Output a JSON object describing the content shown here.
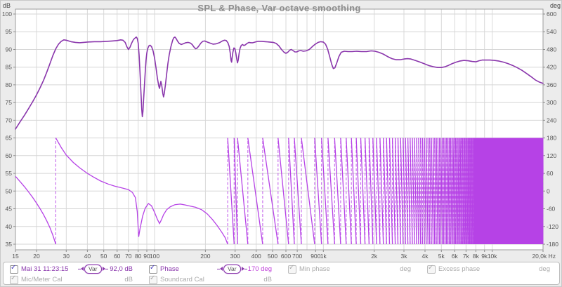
{
  "chart_data": {
    "type": "line",
    "title": "SPL & Phase, Var octave smoothing",
    "x_axis": {
      "unit": "Hz",
      "scale": "log",
      "min": 15,
      "max": 20000,
      "ticks": [
        {
          "f": 15,
          "label": "15"
        },
        {
          "f": 20,
          "label": "20"
        },
        {
          "f": 30,
          "label": "30"
        },
        {
          "f": 40,
          "label": "40"
        },
        {
          "f": 50,
          "label": "50"
        },
        {
          "f": 60,
          "label": "60"
        },
        {
          "f": 70,
          "label": "70"
        },
        {
          "f": 80,
          "label": "80"
        },
        {
          "f": 90,
          "label": "90"
        },
        {
          "f": 100,
          "label": "100"
        },
        {
          "f": 200,
          "label": "200"
        },
        {
          "f": 300,
          "label": "300"
        },
        {
          "f": 400,
          "label": "400"
        },
        {
          "f": 500,
          "label": "500"
        },
        {
          "f": 600,
          "label": "600"
        },
        {
          "f": 700,
          "label": "700"
        },
        {
          "f": 800,
          "label": ""
        },
        {
          "f": 900,
          "label": "900"
        },
        {
          "f": 1000,
          "label": "1k"
        },
        {
          "f": 2000,
          "label": "2k"
        },
        {
          "f": 3000,
          "label": "3k"
        },
        {
          "f": 4000,
          "label": "4k"
        },
        {
          "f": 5000,
          "label": "5k"
        },
        {
          "f": 6000,
          "label": "6k"
        },
        {
          "f": 7000,
          "label": "7k"
        },
        {
          "f": 8000,
          "label": "8k"
        },
        {
          "f": 9000,
          "label": "9k"
        },
        {
          "f": 10000,
          "label": "10k"
        },
        {
          "f": 20000,
          "label": "20,0k Hz"
        }
      ]
    },
    "y_left": {
      "label": "dB",
      "min": 35,
      "max": 100,
      "step": 5
    },
    "y_right": {
      "label": "deg",
      "min": -180,
      "max": 600,
      "step": 60
    },
    "series": [
      {
        "name": "SPL (Mai 31 11:23:15)",
        "axis": "left",
        "color": "#8a36ac",
        "points": [
          [
            15,
            67.5
          ],
          [
            16,
            69.6
          ],
          [
            17,
            71.5
          ],
          [
            18,
            73.4
          ],
          [
            19,
            75.3
          ],
          [
            20,
            77.2
          ],
          [
            21,
            79.2
          ],
          [
            22,
            81.3
          ],
          [
            23,
            83.6
          ],
          [
            24,
            86.0
          ],
          [
            25,
            88.3
          ],
          [
            26,
            90.2
          ],
          [
            27,
            91.5
          ],
          [
            28,
            92.3
          ],
          [
            29,
            92.7
          ],
          [
            30,
            92.6
          ],
          [
            32,
            92.2
          ],
          [
            34,
            92.0
          ],
          [
            36,
            91.9
          ],
          [
            38,
            92.0
          ],
          [
            40,
            92.1
          ],
          [
            44,
            92.2
          ],
          [
            48,
            92.2
          ],
          [
            52,
            92.3
          ],
          [
            56,
            92.4
          ],
          [
            60,
            92.5
          ],
          [
            63,
            92.7
          ],
          [
            65,
            92.6
          ],
          [
            67,
            92.0
          ],
          [
            68.5,
            90.8
          ],
          [
            70,
            90.0
          ],
          [
            71.5,
            90.6
          ],
          [
            73,
            91.7
          ],
          [
            75,
            92.8
          ],
          [
            77,
            93.3
          ],
          [
            78,
            93.5
          ],
          [
            79,
            93.1
          ],
          [
            80,
            91.8
          ],
          [
            81,
            88.5
          ],
          [
            82,
            83.5
          ],
          [
            83,
            78.0
          ],
          [
            84,
            73.0
          ],
          [
            84.6,
            71.0
          ],
          [
            85.4,
            72.5
          ],
          [
            86,
            75.5
          ],
          [
            87,
            79.5
          ],
          [
            88,
            83.5
          ],
          [
            89,
            86.8
          ],
          [
            90,
            89.0
          ],
          [
            91,
            90.2
          ],
          [
            92.5,
            91.0
          ],
          [
            94,
            91.2
          ],
          [
            96,
            90.8
          ],
          [
            98,
            89.6
          ],
          [
            100,
            87.6
          ],
          [
            102,
            84.8
          ],
          [
            104,
            81.8
          ],
          [
            106,
            79.6
          ],
          [
            107,
            79.0
          ],
          [
            108,
            80.0
          ],
          [
            109,
            81.0
          ],
          [
            110.5,
            79.6
          ],
          [
            112,
            77.5
          ],
          [
            113,
            76.6
          ],
          [
            114,
            77.4
          ],
          [
            116,
            80.0
          ],
          [
            118,
            83.2
          ],
          [
            120,
            86.0
          ],
          [
            122,
            88.4
          ],
          [
            125,
            90.8
          ],
          [
            128,
            92.6
          ],
          [
            130,
            93.3
          ],
          [
            132,
            93.5
          ],
          [
            134,
            93.1
          ],
          [
            137,
            92.3
          ],
          [
            140,
            91.7
          ],
          [
            144,
            91.4
          ],
          [
            148,
            91.6
          ],
          [
            153,
            91.9
          ],
          [
            158,
            92.0
          ],
          [
            163,
            91.8
          ],
          [
            167,
            91.4
          ],
          [
            171,
            90.7
          ],
          [
            175,
            90.2
          ],
          [
            179,
            90.4
          ],
          [
            183,
            91.0
          ],
          [
            188,
            91.8
          ],
          [
            193,
            92.3
          ],
          [
            198,
            92.4
          ],
          [
            205,
            92.1
          ],
          [
            213,
            91.8
          ],
          [
            222,
            91.5
          ],
          [
            232,
            91.6
          ],
          [
            242,
            91.9
          ],
          [
            252,
            92.4
          ],
          [
            260,
            92.6
          ],
          [
            266,
            92.5
          ],
          [
            272,
            91.9
          ],
          [
            277,
            90.8
          ],
          [
            281,
            88.9
          ],
          [
            284,
            86.9
          ],
          [
            286,
            86.4
          ],
          [
            288,
            87.6
          ],
          [
            291,
            89.2
          ],
          [
            295,
            90.4
          ],
          [
            299,
            90.3
          ],
          [
            303,
            89.0
          ],
          [
            307,
            87.2
          ],
          [
            310,
            86.2
          ],
          [
            313,
            87.0
          ],
          [
            317,
            88.9
          ],
          [
            321,
            90.3
          ],
          [
            326,
            91.1
          ],
          [
            332,
            91.4
          ],
          [
            338,
            91.1
          ],
          [
            345,
            91.3
          ],
          [
            353,
            91.7
          ],
          [
            362,
            92.0
          ],
          [
            372,
            91.9
          ],
          [
            382,
            91.9
          ],
          [
            395,
            92.1
          ],
          [
            410,
            92.3
          ],
          [
            430,
            92.3
          ],
          [
            455,
            92.2
          ],
          [
            480,
            92.1
          ],
          [
            505,
            92.0
          ],
          [
            525,
            91.7
          ],
          [
            545,
            91.0
          ],
          [
            565,
            90.0
          ],
          [
            585,
            89.2
          ],
          [
            600,
            88.9
          ],
          [
            615,
            89.2
          ],
          [
            632,
            89.8
          ],
          [
            645,
            90.0
          ],
          [
            660,
            89.7
          ],
          [
            678,
            89.3
          ],
          [
            695,
            89.3
          ],
          [
            715,
            89.6
          ],
          [
            735,
            89.7
          ],
          [
            760,
            89.5
          ],
          [
            790,
            89.6
          ],
          [
            825,
            90.0
          ],
          [
            860,
            90.8
          ],
          [
            895,
            91.5
          ],
          [
            930,
            92.0
          ],
          [
            965,
            92.2
          ],
          [
            1000,
            92.1
          ],
          [
            1030,
            91.5
          ],
          [
            1060,
            90.1
          ],
          [
            1090,
            88.0
          ],
          [
            1120,
            85.8
          ],
          [
            1145,
            84.6
          ],
          [
            1170,
            84.8
          ],
          [
            1200,
            86.2
          ],
          [
            1235,
            88.0
          ],
          [
            1275,
            89.2
          ],
          [
            1330,
            89.5
          ],
          [
            1400,
            89.4
          ],
          [
            1480,
            89.4
          ],
          [
            1570,
            89.5
          ],
          [
            1680,
            89.4
          ],
          [
            1800,
            89.4
          ],
          [
            1920,
            89.6
          ],
          [
            2020,
            89.5
          ],
          [
            2130,
            89.2
          ],
          [
            2260,
            88.7
          ],
          [
            2400,
            88.0
          ],
          [
            2550,
            87.4
          ],
          [
            2700,
            87.1
          ],
          [
            2850,
            87.1
          ],
          [
            3000,
            87.3
          ],
          [
            3150,
            87.4
          ],
          [
            3300,
            87.3
          ],
          [
            3500,
            86.9
          ],
          [
            3750,
            86.4
          ],
          [
            4000,
            85.9
          ],
          [
            4250,
            85.4
          ],
          [
            4500,
            85.1
          ],
          [
            4750,
            84.9
          ],
          [
            5000,
            84.9
          ],
          [
            5250,
            85.1
          ],
          [
            5500,
            85.5
          ],
          [
            5800,
            86.0
          ],
          [
            6100,
            86.4
          ],
          [
            6400,
            86.7
          ],
          [
            6800,
            86.9
          ],
          [
            7200,
            86.8
          ],
          [
            7600,
            86.6
          ],
          [
            8000,
            86.5
          ],
          [
            8350,
            86.8
          ],
          [
            8700,
            87.0
          ],
          [
            9200,
            87.0
          ],
          [
            9700,
            87.0
          ],
          [
            10300,
            86.9
          ],
          [
            11000,
            86.7
          ],
          [
            11700,
            86.4
          ],
          [
            12400,
            86.0
          ],
          [
            13200,
            85.5
          ],
          [
            14000,
            84.9
          ],
          [
            15000,
            84.1
          ],
          [
            16000,
            83.2
          ],
          [
            17000,
            82.3
          ],
          [
            18000,
            81.4
          ],
          [
            19000,
            80.8
          ],
          [
            20000,
            80.4
          ]
        ]
      },
      {
        "name": "Phase",
        "axis": "right",
        "color": "#b642e6",
        "wrap_range_deg": [
          -180,
          180
        ],
        "start_points": [
          [
            15,
            50
          ],
          [
            16,
            32
          ],
          [
            17,
            14
          ],
          [
            18,
            -4
          ],
          [
            19,
            -22
          ],
          [
            20,
            -41
          ],
          [
            21,
            -60
          ],
          [
            22,
            -80
          ],
          [
            23,
            -101
          ],
          [
            24,
            -124
          ],
          [
            25,
            -150
          ],
          [
            26,
            -180
          ]
        ],
        "mid_points": [
          [
            26,
            180
          ],
          [
            28,
            148
          ],
          [
            30,
            122
          ],
          [
            33,
            97
          ],
          [
            36,
            79
          ],
          [
            40,
            60
          ],
          [
            44,
            46
          ],
          [
            48,
            34
          ],
          [
            53,
            24
          ],
          [
            58,
            17
          ],
          [
            64,
            11
          ],
          [
            70,
            5
          ],
          [
            74,
            -5
          ],
          [
            77,
            -22
          ],
          [
            79,
            -70
          ],
          [
            80.5,
            -155
          ],
          [
            82,
            -128
          ],
          [
            85,
            -85
          ],
          [
            88,
            -58
          ],
          [
            92,
            -42
          ],
          [
            96,
            -50
          ],
          [
            100,
            -72
          ],
          [
            104,
            -96
          ],
          [
            107,
            -110
          ],
          [
            110,
            -96
          ],
          [
            113,
            -80
          ],
          [
            118,
            -63
          ],
          [
            124,
            -53
          ],
          [
            132,
            -46
          ],
          [
            142,
            -44
          ],
          [
            152,
            -47
          ],
          [
            163,
            -51
          ],
          [
            175,
            -55
          ],
          [
            190,
            -63
          ],
          [
            205,
            -77
          ],
          [
            220,
            -96
          ],
          [
            235,
            -117
          ],
          [
            250,
            -139
          ],
          [
            262,
            -158
          ],
          [
            271,
            -180
          ]
        ],
        "rotation_wrap_hz": [
          271,
          296,
          310,
          357,
          437,
          539,
          622,
          673,
          741,
          888,
          975,
          1065
        ],
        "delay_region": {
          "start_hz": 1065,
          "spacing_hz": 100,
          "end_hz": 20000
        }
      }
    ],
    "grid": {
      "h_color": "#d6d6d6",
      "v_color": "#d9d9d9",
      "border_color": "#9c9c9c",
      "plot_bg": "#ffffff"
    }
  },
  "legend": {
    "row1": [
      {
        "name": "measurement",
        "checked": true,
        "disabled": false,
        "label": "Mai 31 11:23:15",
        "label_color": "#8a36ac",
        "pill": "Var",
        "value": "92,0 dB",
        "value_color": "#8a36ac"
      },
      {
        "name": "phase",
        "checked": true,
        "disabled": false,
        "label": "Phase",
        "label_color": "#8a36ac",
        "pill": "Var",
        "value": "170 deg",
        "value_color": "#bf3fd9"
      },
      {
        "name": "min-phase",
        "checked": true,
        "disabled": true,
        "label": "Min phase",
        "label_color": "#ababab",
        "pill": null,
        "value": "deg",
        "value_color": "#ababab"
      },
      {
        "name": "excess-phase",
        "checked": true,
        "disabled": true,
        "label": "Excess phase",
        "label_color": "#ababab",
        "pill": null,
        "value": "deg",
        "value_color": "#ababab"
      }
    ],
    "row2": [
      {
        "name": "mic-meter-cal",
        "checked": true,
        "disabled": true,
        "label": "Mic/Meter Cal",
        "label_color": "#ababab",
        "pill": null,
        "value": "dB",
        "value_color": "#ababab"
      },
      {
        "name": "soundcard-cal",
        "checked": true,
        "disabled": true,
        "label": "Soundcard Cal",
        "label_color": "#ababab",
        "pill": null,
        "value": "dB",
        "value_color": "#ababab"
      }
    ],
    "checkmark": "✓"
  }
}
